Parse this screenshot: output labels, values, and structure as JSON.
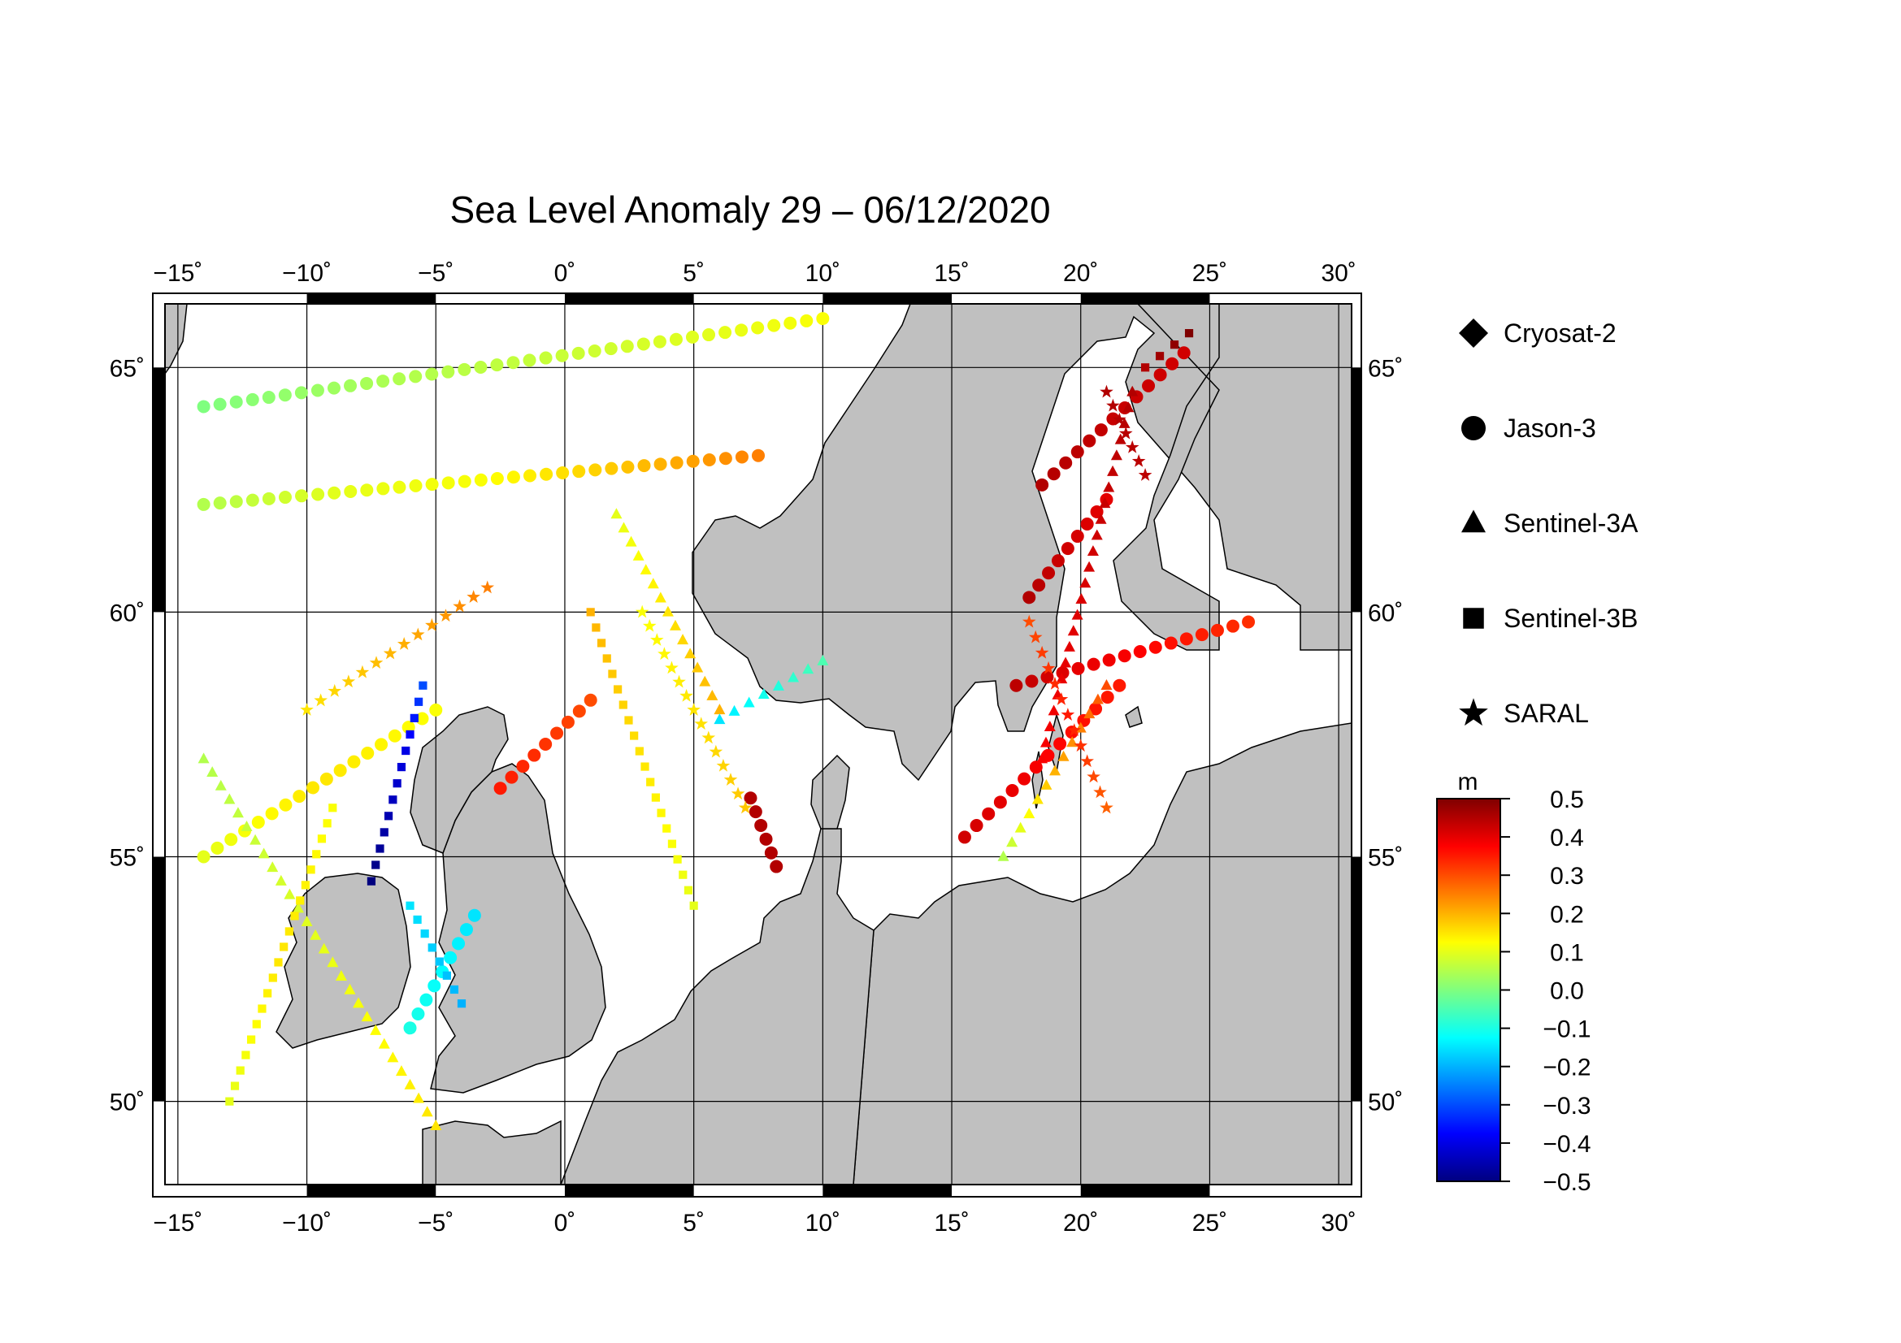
{
  "title": "Sea Level Anomaly 29 – 06/12/2020",
  "map": {
    "lon_range": [
      -15.5,
      30.5
    ],
    "lat_range": [
      48.3,
      66.3
    ],
    "lon_ticks": [
      {
        "value": -15,
        "label": "−15˚"
      },
      {
        "value": -10,
        "label": "−10˚"
      },
      {
        "value": -5,
        "label": "−5˚"
      },
      {
        "value": 0,
        "label": "0˚"
      },
      {
        "value": 5,
        "label": "5˚"
      },
      {
        "value": 10,
        "label": "10˚"
      },
      {
        "value": 15,
        "label": "15˚"
      },
      {
        "value": 20,
        "label": "20˚"
      },
      {
        "value": 25,
        "label": "25˚"
      },
      {
        "value": 30,
        "label": "30˚"
      }
    ],
    "lat_ticks": [
      {
        "value": 50,
        "label": "50˚"
      },
      {
        "value": 55,
        "label": "55˚"
      },
      {
        "value": 60,
        "label": "60˚"
      },
      {
        "value": 65,
        "label": "65˚"
      }
    ],
    "colors": {
      "land": "#c0c0c0",
      "sea": "#ffffff",
      "grid": "#000000",
      "frame": "#000000"
    }
  },
  "legend": [
    {
      "symbol": "diamond-icon",
      "label": "Cryosat-2"
    },
    {
      "symbol": "circle-icon",
      "label": "Jason-3"
    },
    {
      "symbol": "triangle-icon",
      "label": "Sentinel-3A"
    },
    {
      "symbol": "square-icon",
      "label": "Sentinel-3B"
    },
    {
      "symbol": "star-icon",
      "label": "SARAL"
    }
  ],
  "colorbar": {
    "unit": "m",
    "min": -0.5,
    "max": 0.5,
    "tick_labels": [
      "0.5",
      "0.4",
      "0.3",
      "0.2",
      "0.1",
      "0.0",
      "−0.1",
      "−0.2",
      "−0.3",
      "−0.4",
      "−0.5"
    ],
    "colors": [
      "#00007f",
      "#0000ff",
      "#007fff",
      "#00ffff",
      "#7fff7f",
      "#ffff00",
      "#ff7f00",
      "#ff0000",
      "#7f0000"
    ]
  },
  "chart_data": {
    "type": "scatter",
    "value_unit": "m",
    "series": [
      {
        "name": "Jason-3",
        "symbol": "circle",
        "tracks": [
          {
            "start": [
              -14,
              62.2
            ],
            "end": [
              7.5,
              63.2
            ],
            "values": [
              0.05,
              0.1,
              0.12,
              0.18,
              0.25
            ]
          },
          {
            "start": [
              -2.5,
              56.4
            ],
            "end": [
              1,
              58.2
            ],
            "values": [
              0.35,
              0.3
            ]
          },
          {
            "start": [
              15.5,
              55.4
            ],
            "end": [
              21.5,
              58.5
            ],
            "values": [
              0.42,
              0.4,
              0.38,
              0.36,
              0.35
            ]
          },
          {
            "start": [
              17.5,
              58.5
            ],
            "end": [
              26.5,
              59.8
            ],
            "values": [
              0.44,
              0.4,
              0.38,
              0.35,
              0.33
            ]
          },
          {
            "start": [
              18,
              60.3
            ],
            "end": [
              21,
              62.3
            ],
            "values": [
              0.45,
              0.42,
              0.4
            ]
          },
          {
            "start": [
              18.5,
              62.6
            ],
            "end": [
              24,
              65.3
            ],
            "values": [
              0.45,
              0.43,
              0.42
            ]
          },
          {
            "start": [
              -14,
              55
            ],
            "end": [
              -5,
              58
            ],
            "values": [
              0.1,
              0.15,
              0.12
            ]
          },
          {
            "start": [
              -14,
              64.2
            ],
            "end": [
              10,
              66
            ],
            "values": [
              0.0,
              0.05,
              0.08,
              0.12
            ]
          },
          {
            "start": [
              -6,
              51.5
            ],
            "end": [
              -3.5,
              53.8
            ],
            "values": [
              -0.1,
              -0.15
            ]
          },
          {
            "start": [
              7.2,
              56.2
            ],
            "end": [
              8.2,
              54.8
            ],
            "values": [
              0.45
            ]
          }
        ]
      },
      {
        "name": "Sentinel-3A",
        "symbol": "triangle",
        "tracks": [
          {
            "start": [
              -14,
              57
            ],
            "end": [
              -5,
              49.5
            ],
            "values": [
              0.05,
              0.1,
              0.15
            ]
          },
          {
            "start": [
              2,
              62
            ],
            "end": [
              6,
              58
            ],
            "values": [
              0.1,
              0.2
            ]
          },
          {
            "start": [
              6,
              57.8
            ],
            "end": [
              10,
              59
            ],
            "values": [
              -0.15,
              -0.05
            ]
          },
          {
            "start": [
              18.5,
              57
            ],
            "end": [
              22,
              64.5
            ],
            "values": [
              0.38,
              0.45
            ]
          },
          {
            "start": [
              17,
              55
            ],
            "end": [
              21,
              58.5
            ],
            "values": [
              0.05,
              0.2,
              0.3
            ]
          }
        ]
      },
      {
        "name": "Sentinel-3B",
        "symbol": "square",
        "tracks": [
          {
            "start": [
              -7.5,
              54.5
            ],
            "end": [
              -5.5,
              58.5
            ],
            "values": [
              -0.5,
              -0.45,
              -0.4,
              -0.3
            ]
          },
          {
            "start": [
              -13,
              50
            ],
            "end": [
              -9,
              56
            ],
            "values": [
              0.1,
              0.15,
              0.12
            ]
          },
          {
            "start": [
              1,
              60
            ],
            "end": [
              5,
              54
            ],
            "values": [
              0.2,
              0.15,
              0.1
            ]
          },
          {
            "start": [
              -6,
              54
            ],
            "end": [
              -4,
              52
            ],
            "values": [
              -0.15,
              -0.2
            ]
          },
          {
            "start": [
              22.5,
              65
            ],
            "end": [
              24.2,
              65.7
            ],
            "values": [
              0.45,
              0.5
            ]
          }
        ]
      },
      {
        "name": "SARAL",
        "symbol": "star",
        "tracks": [
          {
            "start": [
              -10,
              58
            ],
            "end": [
              -3,
              60.5
            ],
            "values": [
              0.15,
              0.25
            ]
          },
          {
            "start": [
              3,
              60
            ],
            "end": [
              7,
              56
            ],
            "values": [
              0.12,
              0.18
            ]
          },
          {
            "start": [
              18,
              59.8
            ],
            "end": [
              21,
              56
            ],
            "values": [
              0.3,
              0.35,
              0.28
            ]
          },
          {
            "start": [
              21,
              64.5
            ],
            "end": [
              22.5,
              62.8
            ],
            "values": [
              0.45,
              0.44
            ]
          }
        ]
      },
      {
        "name": "Cryosat-2",
        "symbol": "diamond",
        "tracks": []
      }
    ]
  }
}
